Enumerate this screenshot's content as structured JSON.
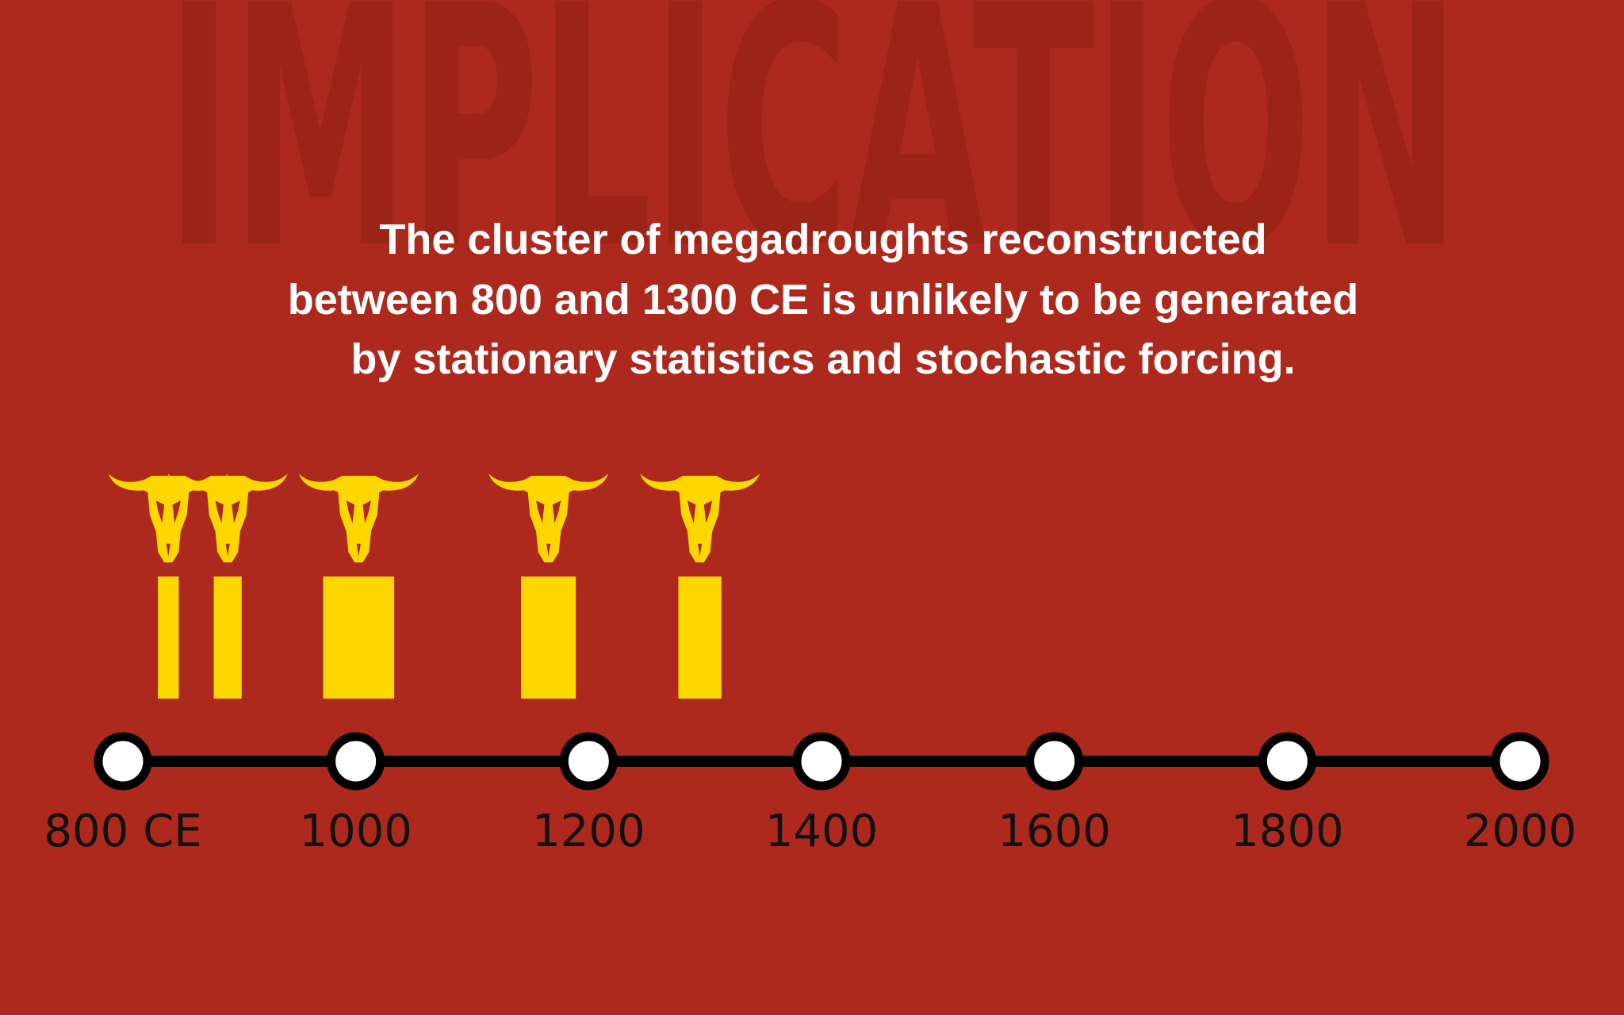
{
  "chart_data": {
    "type": "timeline",
    "title": "IMPLICATION",
    "subtitle": [
      "The cluster of megadroughts reconstructed",
      "between 800 and 1300 CE is unlikely to be generated",
      "by stationary statistics and stochastic forcing."
    ],
    "starts": [
      830,
      878,
      972,
      1142,
      1277
    ],
    "ends": [
      848,
      902,
      1033,
      1189,
      1314
    ],
    "color": "#ffd700",
    "xlim": [
      800,
      2000
    ],
    "xticks": [
      {
        "value": 800,
        "label": "800 CE"
      },
      1000,
      1200,
      1400,
      1600,
      1800,
      2000
    ]
  }
}
